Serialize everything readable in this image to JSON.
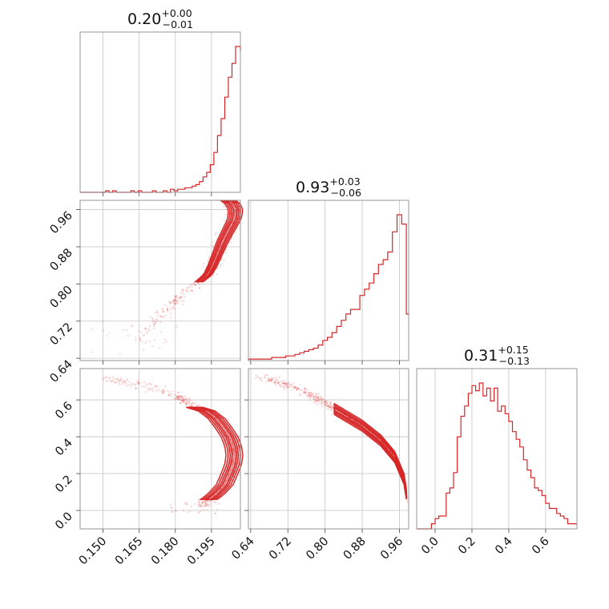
{
  "chart_data": {
    "type": "corner",
    "color": "#d62728",
    "parameters": [
      {
        "title": {
          "value": "0.20",
          "upper": "+0.00",
          "lower": "−0.01"
        },
        "range": [
          0.1405,
          0.207
        ],
        "ticks": [
          0.15,
          0.165,
          0.18,
          0.195
        ],
        "tick_labels": [
          "0.150",
          "0.165",
          "0.180",
          "0.195"
        ],
        "hist_x": [
          0.1405,
          0.142,
          0.1435,
          0.145,
          0.1465,
          0.148,
          0.1495,
          0.151,
          0.1525,
          0.154,
          0.1555,
          0.157,
          0.1585,
          0.16,
          0.1615,
          0.163,
          0.1645,
          0.166,
          0.1675,
          0.169,
          0.1705,
          0.172,
          0.1735,
          0.175,
          0.1765,
          0.178,
          0.1795,
          0.181,
          0.1825,
          0.184,
          0.1855,
          0.187,
          0.1885,
          0.19,
          0.1915,
          0.193,
          0.1945,
          0.196,
          0.1975,
          0.199,
          0.2005,
          0.202,
          0.2035,
          0.205,
          0.207
        ],
        "hist_counts": [
          0,
          0,
          0,
          0,
          0,
          0,
          0,
          1,
          0,
          1,
          0,
          0,
          0,
          0,
          1,
          0,
          1,
          0,
          0,
          0,
          1,
          0,
          0,
          1,
          0,
          2,
          1,
          2,
          2,
          3,
          3,
          4,
          5,
          7,
          10,
          13,
          18,
          26,
          37,
          48,
          62,
          75,
          84,
          95,
          92
        ]
      },
      {
        "title": {
          "value": "0.93",
          "upper": "+0.03",
          "lower": "−0.06"
        },
        "range": [
          0.635,
          0.98
        ],
        "ticks": [
          0.64,
          0.72,
          0.8,
          0.88,
          0.96
        ],
        "tick_labels": [
          "0.64",
          "0.72",
          "0.80",
          "0.88",
          "0.96"
        ],
        "hist_x": [
          0.635,
          0.645,
          0.655,
          0.665,
          0.675,
          0.685,
          0.695,
          0.705,
          0.715,
          0.725,
          0.735,
          0.745,
          0.755,
          0.765,
          0.775,
          0.785,
          0.795,
          0.805,
          0.815,
          0.825,
          0.835,
          0.845,
          0.855,
          0.865,
          0.875,
          0.885,
          0.895,
          0.905,
          0.915,
          0.925,
          0.935,
          0.945,
          0.955,
          0.965,
          0.975,
          0.98
        ],
        "hist_counts": [
          1,
          1,
          1,
          1,
          1,
          2,
          2,
          2,
          3,
          3,
          4,
          5,
          6,
          7,
          8,
          10,
          13,
          15,
          18,
          22,
          26,
          30,
          33,
          33,
          42,
          46,
          50,
          56,
          62,
          65,
          70,
          83,
          94,
          88,
          30,
          30
        ]
      },
      {
        "title": {
          "value": "0.31",
          "upper": "+0.15",
          "lower": "−0.13"
        },
        "range": [
          -0.1,
          0.77
        ],
        "ticks": [
          0.0,
          0.2,
          0.4,
          0.6
        ],
        "tick_labels": [
          "0.0",
          "0.2",
          "0.4",
          "0.6"
        ],
        "hist_x": [
          -0.1,
          -0.08,
          -0.06,
          -0.04,
          -0.02,
          0.0,
          0.02,
          0.04,
          0.06,
          0.08,
          0.1,
          0.12,
          0.14,
          0.16,
          0.18,
          0.2,
          0.22,
          0.24,
          0.26,
          0.28,
          0.3,
          0.32,
          0.34,
          0.36,
          0.38,
          0.4,
          0.42,
          0.44,
          0.46,
          0.48,
          0.5,
          0.52,
          0.54,
          0.56,
          0.58,
          0.6,
          0.62,
          0.64,
          0.66,
          0.68,
          0.7,
          0.72,
          0.74,
          0.77
        ],
        "hist_counts": [
          0,
          0,
          0,
          0,
          2,
          4,
          5,
          5,
          14,
          16,
          22,
          36,
          44,
          48,
          53,
          56,
          54,
          57,
          52,
          55,
          50,
          55,
          46,
          48,
          45,
          42,
          38,
          35,
          32,
          27,
          23,
          20,
          16,
          15,
          13,
          10,
          8,
          8,
          6,
          5,
          4,
          2,
          2,
          2
        ]
      }
    ],
    "joint": [
      {
        "x_param": 0,
        "y_param": 1,
        "ridge": [
          [
            0.2,
            0.985
          ],
          [
            0.2035,
            0.975
          ],
          [
            0.205,
            0.96
          ],
          [
            0.2045,
            0.94
          ],
          [
            0.202,
            0.915
          ],
          [
            0.1995,
            0.89
          ],
          [
            0.1975,
            0.865
          ],
          [
            0.1955,
            0.84
          ],
          [
            0.1935,
            0.82
          ],
          [
            0.19,
            0.805
          ],
          [
            0.186,
            0.79
          ],
          [
            0.182,
            0.775
          ],
          [
            0.178,
            0.755
          ],
          [
            0.174,
            0.735
          ],
          [
            0.17,
            0.71
          ],
          [
            0.166,
            0.69
          ]
        ],
        "contour_end": 0.1935
      },
      {
        "x_param": 0,
        "y_param": 2,
        "ridge": [
          [
            0.182,
            0.61
          ],
          [
            0.188,
            0.56
          ],
          [
            0.193,
            0.54
          ],
          [
            0.197,
            0.5
          ],
          [
            0.2,
            0.45
          ],
          [
            0.2025,
            0.4
          ],
          [
            0.204,
            0.35
          ],
          [
            0.2045,
            0.3
          ],
          [
            0.204,
            0.25
          ],
          [
            0.2025,
            0.2
          ],
          [
            0.2005,
            0.14
          ],
          [
            0.197,
            0.09
          ],
          [
            0.192,
            0.04
          ]
        ],
        "tail": [
          [
            0.15,
            0.72
          ],
          [
            0.158,
            0.7
          ],
          [
            0.165,
            0.68
          ],
          [
            0.172,
            0.66
          ],
          [
            0.178,
            0.63
          ],
          [
            0.182,
            0.61
          ]
        ],
        "contour_start": 0.182
      },
      {
        "x_param": 1,
        "y_param": 2,
        "ridge": [
          [
            0.64,
            0.74
          ],
          [
            0.68,
            0.71
          ],
          [
            0.72,
            0.68
          ],
          [
            0.76,
            0.64
          ],
          [
            0.8,
            0.58
          ],
          [
            0.84,
            0.52
          ],
          [
            0.88,
            0.46
          ],
          [
            0.92,
            0.38
          ],
          [
            0.95,
            0.29
          ],
          [
            0.97,
            0.17
          ],
          [
            0.98,
            0.01
          ]
        ],
        "contour_start": 0.82
      }
    ]
  }
}
